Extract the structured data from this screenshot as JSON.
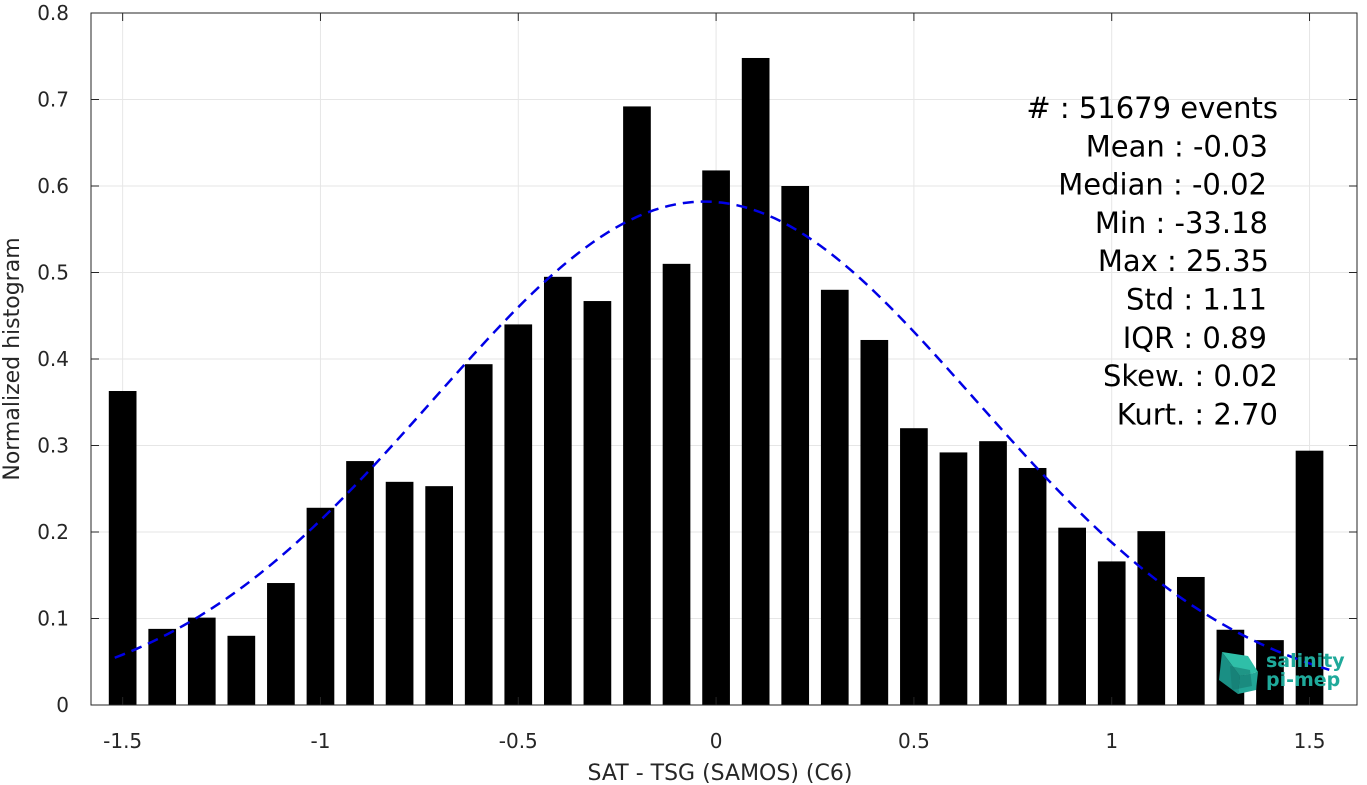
{
  "chart_data": {
    "type": "bar",
    "xlabel": "SAT - TSG (SAMOS) (C6)",
    "ylabel": "Normalized histogram",
    "xlim": [
      -1.58,
      1.62
    ],
    "ylim": [
      0,
      0.8
    ],
    "xticks": [
      -1.5,
      -1,
      -0.5,
      0,
      0.5,
      1,
      1.5
    ],
    "xtick_labels": [
      "-1.5",
      "-1",
      "-0.5",
      "0",
      "0.5",
      "1",
      "1.5"
    ],
    "yticks": [
      0,
      0.1,
      0.2,
      0.3,
      0.4,
      0.5,
      0.6,
      0.7,
      0.8
    ],
    "ytick_labels": [
      "0",
      "0.1",
      "0.2",
      "0.3",
      "0.4",
      "0.5",
      "0.6",
      "0.7",
      "0.8"
    ],
    "grid": true,
    "bar_width": 0.07,
    "bar_color": "#000000",
    "bars": [
      {
        "x": -1.5,
        "y": 0.363
      },
      {
        "x": -1.4,
        "y": 0.088
      },
      {
        "x": -1.3,
        "y": 0.101
      },
      {
        "x": -1.2,
        "y": 0.08
      },
      {
        "x": -1.1,
        "y": 0.141
      },
      {
        "x": -1.0,
        "y": 0.228
      },
      {
        "x": -0.9,
        "y": 0.282
      },
      {
        "x": -0.8,
        "y": 0.258
      },
      {
        "x": -0.7,
        "y": 0.253
      },
      {
        "x": -0.6,
        "y": 0.394
      },
      {
        "x": -0.5,
        "y": 0.44
      },
      {
        "x": -0.4,
        "y": 0.495
      },
      {
        "x": -0.3,
        "y": 0.467
      },
      {
        "x": -0.2,
        "y": 0.692
      },
      {
        "x": -0.1,
        "y": 0.51
      },
      {
        "x": 0.0,
        "y": 0.618
      },
      {
        "x": 0.1,
        "y": 0.748
      },
      {
        "x": 0.2,
        "y": 0.6
      },
      {
        "x": 0.3,
        "y": 0.48
      },
      {
        "x": 0.4,
        "y": 0.422
      },
      {
        "x": 0.5,
        "y": 0.32
      },
      {
        "x": 0.6,
        "y": 0.292
      },
      {
        "x": 0.7,
        "y": 0.305
      },
      {
        "x": 0.8,
        "y": 0.274
      },
      {
        "x": 0.9,
        "y": 0.205
      },
      {
        "x": 1.0,
        "y": 0.166
      },
      {
        "x": 1.1,
        "y": 0.201
      },
      {
        "x": 1.2,
        "y": 0.148
      },
      {
        "x": 1.3,
        "y": 0.087
      },
      {
        "x": 1.4,
        "y": 0.075
      },
      {
        "x": 1.5,
        "y": 0.294
      }
    ],
    "fit_curve": {
      "kind": "gaussian",
      "mean": -0.03,
      "std": 0.685,
      "amplitude": 0.582,
      "x_range": [
        -1.52,
        1.55
      ],
      "color": "#0000e6",
      "style": "dashed"
    },
    "stats": [
      "#  : 51679 events",
      "Mean : -0.03",
      "Median : -0.02",
      "Min : -33.18",
      "Max : 25.35",
      "Std : 1.11",
      "IQR : 0.89",
      "Skew. : 0.02",
      "Kurt. : 2.70"
    ],
    "logo": {
      "line1": "salinity",
      "line2": "pi-mep",
      "color": "#1fa99a"
    }
  }
}
